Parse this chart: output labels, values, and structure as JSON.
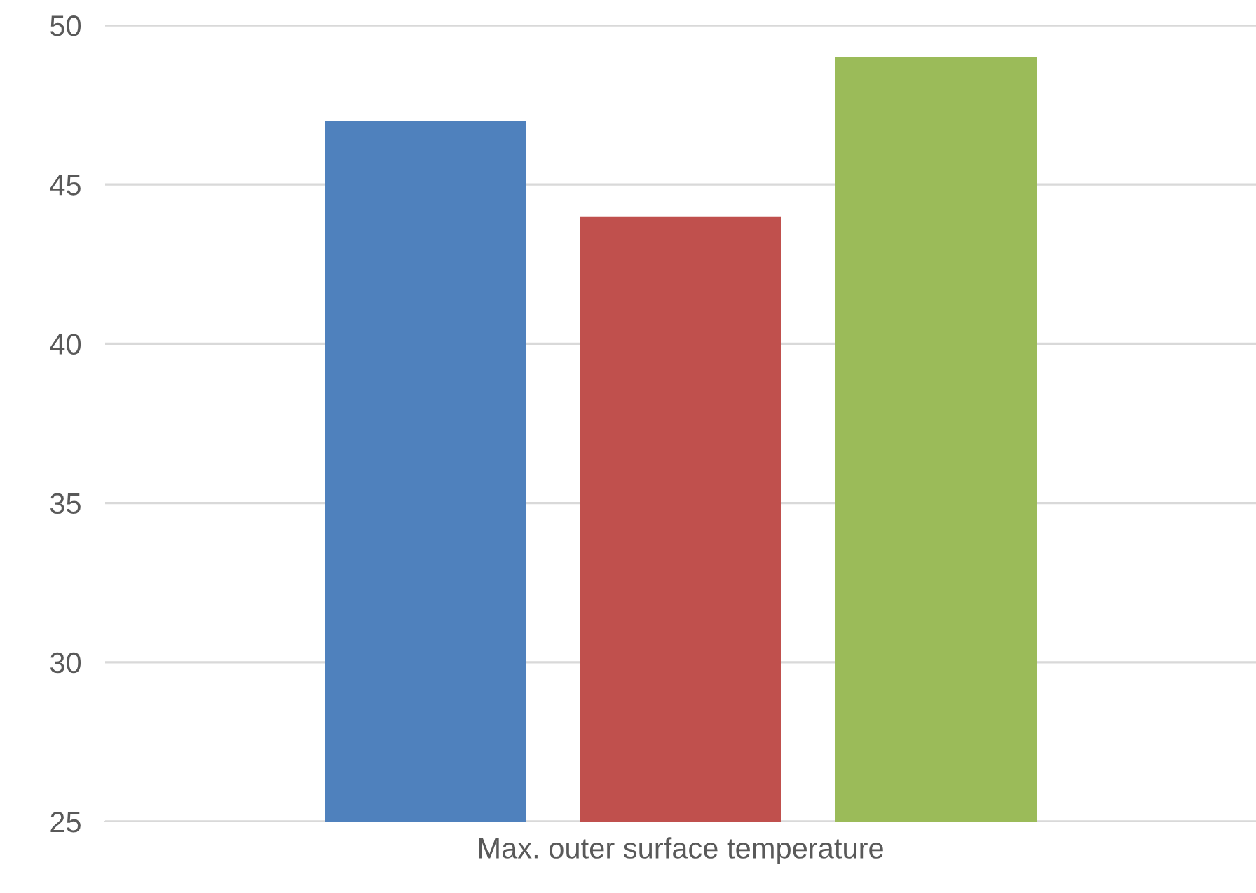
{
  "chart_data": {
    "type": "bar",
    "categories": [
      "Max. outer surface temperature"
    ],
    "series": [
      {
        "color": "#4f81bd",
        "values": [
          47
        ]
      },
      {
        "color": "#c0504d",
        "values": [
          44
        ]
      },
      {
        "color": "#9bbb59",
        "values": [
          49
        ]
      }
    ],
    "ylim": [
      25,
      50
    ],
    "yticks": [
      25,
      30,
      35,
      40,
      45,
      50
    ],
    "grid": "y"
  }
}
